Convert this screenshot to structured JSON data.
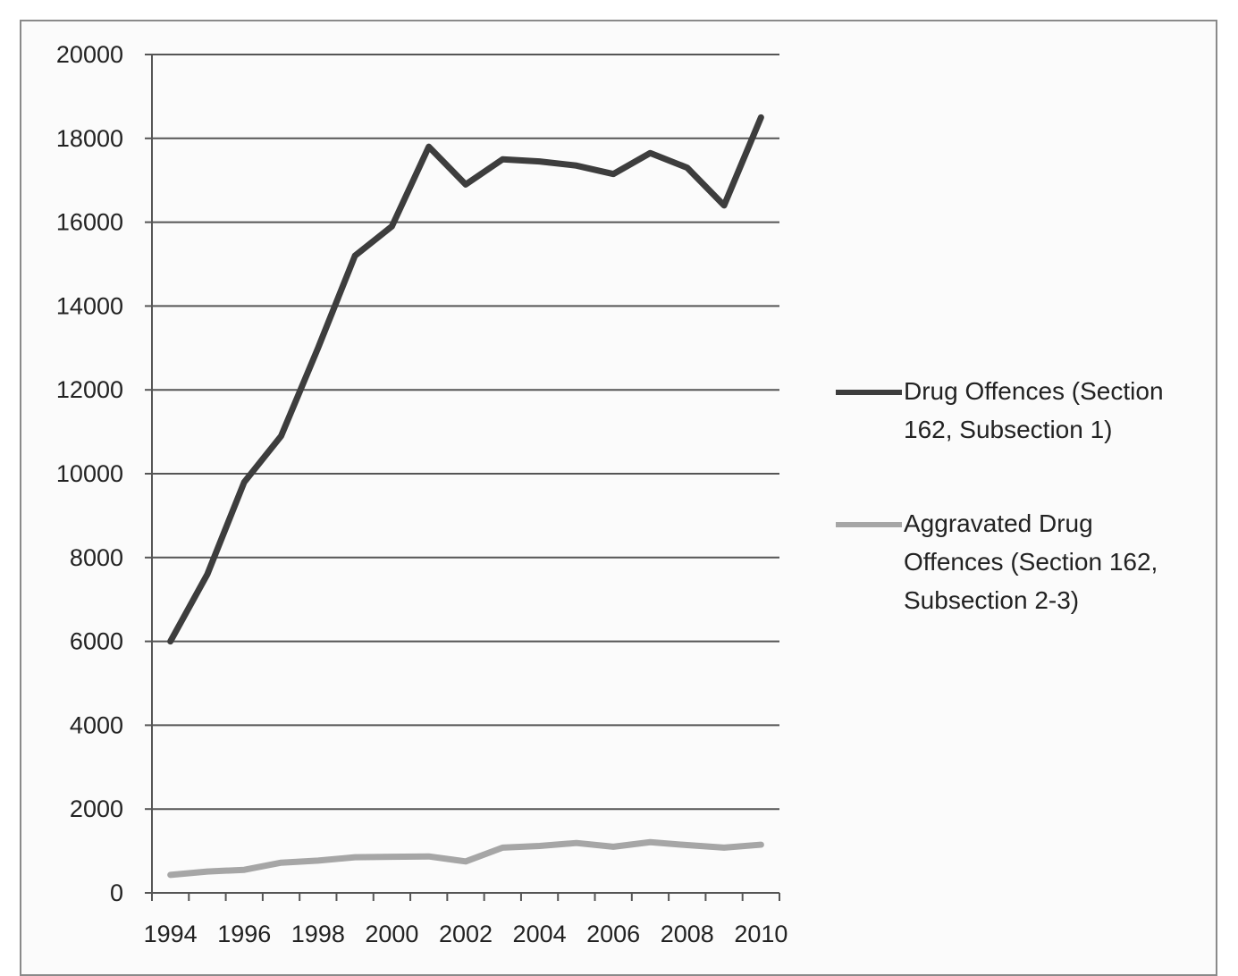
{
  "chart_data": {
    "type": "line",
    "title": "",
    "xlabel": "",
    "ylabel": "",
    "x": [
      1994,
      1995,
      1996,
      1997,
      1998,
      1999,
      2000,
      2001,
      2002,
      2003,
      2004,
      2005,
      2006,
      2007,
      2008,
      2009,
      2010
    ],
    "x_tick_labels": [
      "1994",
      "1996",
      "1998",
      "2000",
      "2002",
      "2004",
      "2006",
      "2008",
      "2010"
    ],
    "y_tick_labels": [
      "0",
      "2000",
      "4000",
      "6000",
      "8000",
      "10000",
      "12000",
      "14000",
      "16000",
      "18000",
      "20000"
    ],
    "ylim": [
      0,
      20000
    ],
    "grid": "horizontal",
    "legend_position": "right",
    "series": [
      {
        "name": "Drug Offences (Section 162, Subsection 1)",
        "legend_lines": [
          "Drug Offences (Section",
          "162, Subsection 1)"
        ],
        "color": "#3d3d3d",
        "values": [
          6000,
          7600,
          9800,
          10900,
          13000,
          15200,
          15900,
          17800,
          16900,
          17500,
          17450,
          17350,
          17150,
          17650,
          17300,
          16400,
          18500
        ]
      },
      {
        "name": "Aggravated Drug Offences (Section 162, Subsection 2-3)",
        "legend_lines": [
          "Aggravated Drug",
          "Offences (Section 162,",
          "Subsection 2-3)"
        ],
        "color": "#a6a6a6",
        "values": [
          430,
          510,
          550,
          720,
          770,
          850,
          860,
          870,
          750,
          1080,
          1120,
          1190,
          1100,
          1210,
          1140,
          1080,
          1150
        ]
      }
    ]
  }
}
